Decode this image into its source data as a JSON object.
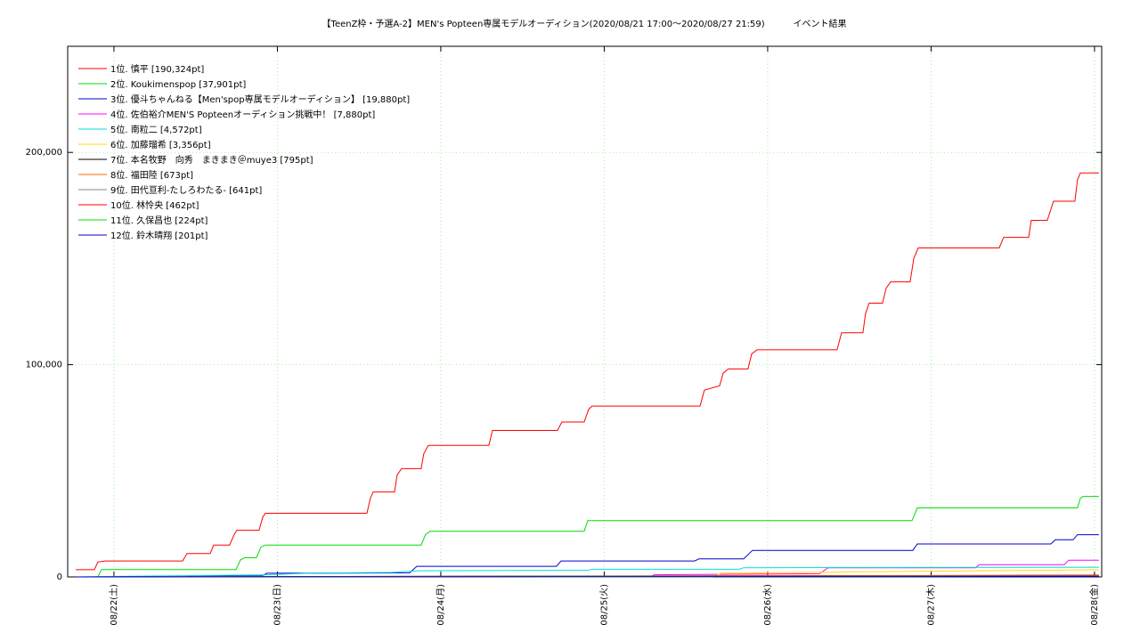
{
  "chart_data": {
    "type": "line",
    "title": "【TeenZ枠・予選A-2】MEN's Popteen専属モデルオーディション(2020/08/21 17:00～2020/08/27 21:59)          イベント結果",
    "xlim": [
      21.717,
      28.044
    ],
    "xticks": [
      {
        "value": 22,
        "label": "08/22(土)"
      },
      {
        "value": 23,
        "label": "08/23(日)"
      },
      {
        "value": 24,
        "label": "08/24(月)"
      },
      {
        "value": 25,
        "label": "08/25(火)"
      },
      {
        "value": 26,
        "label": "08/26(水)"
      },
      {
        "value": 27,
        "label": "08/27(木)"
      },
      {
        "value": 28,
        "label": "08/28(金)"
      }
    ],
    "ylim": [
      0,
      250000
    ],
    "yticks": [
      0,
      {
        "value": 100000,
        "label": "100,000"
      },
      {
        "value": 200000,
        "label": "200,000"
      }
    ],
    "grid": true,
    "legend": "upper left",
    "series": [
      {
        "name": "1位. 慎平 [190,324pt]",
        "color": "#ff0000",
        "x": [
          21.766,
          21.88,
          21.902,
          21.946,
          22.42,
          22.447,
          22.589,
          22.61,
          22.708,
          22.736,
          22.752,
          22.888,
          22.91,
          22.926,
          23.548,
          23.569,
          23.586,
          23.717,
          23.733,
          23.76,
          23.88,
          23.896,
          23.924,
          24.294,
          24.316,
          24.714,
          24.741,
          24.877,
          24.905,
          24.926,
          25.586,
          25.613,
          25.706,
          25.728,
          25.76,
          25.88,
          25.902,
          25.935,
          26.425,
          26.452,
          26.583,
          26.599,
          26.621,
          26.703,
          26.725,
          26.752,
          26.872,
          26.894,
          26.921,
          27.417,
          27.444,
          27.597,
          27.613,
          27.711,
          27.749,
          27.88,
          27.896,
          27.913,
          28.027
        ],
        "values": [
          3400,
          3400,
          7000,
          7500,
          7500,
          11000,
          11000,
          15000,
          15000,
          20000,
          22000,
          22000,
          28000,
          30000,
          30000,
          37000,
          40000,
          40000,
          48000,
          51000,
          51000,
          58000,
          62000,
          62000,
          69000,
          69000,
          73000,
          73000,
          79000,
          80500,
          80500,
          88000,
          90000,
          96000,
          98000,
          98000,
          105000,
          107000,
          107000,
          115000,
          115000,
          124000,
          129000,
          129000,
          136000,
          139000,
          139000,
          150000,
          155000,
          155000,
          160000,
          160000,
          168000,
          168000,
          177000,
          177000,
          187000,
          190324,
          190324
        ]
      },
      {
        "name": "2位. Koukimenspop [37,901pt]",
        "color": "#00dd00",
        "x": [
          21.766,
          21.902,
          21.924,
          22.747,
          22.774,
          22.801,
          22.872,
          22.899,
          22.926,
          23.88,
          23.907,
          23.935,
          24.877,
          24.899,
          26.883,
          26.916,
          27.896,
          27.913,
          27.929,
          28.027
        ],
        "values": [
          0,
          0,
          3500,
          3500,
          8000,
          9000,
          9000,
          14000,
          15000,
          15000,
          20000,
          21500,
          21500,
          26500,
          26500,
          32500,
          32500,
          37000,
          37901,
          37901
        ]
      },
      {
        "name": "3位. 優斗ちゃんねる【Men'spop専属モデルオーディション】 [19,880pt]",
        "color": "#0000cc",
        "x": [
          21.766,
          22.447,
          22.474,
          22.91,
          22.937,
          23.809,
          23.853,
          24.708,
          24.736,
          25.553,
          25.58,
          25.853,
          25.907,
          26.888,
          26.916,
          27.733,
          27.76,
          27.869,
          27.896,
          28.027
        ],
        "values": [
          0,
          0,
          500,
          700,
          1700,
          1900,
          5000,
          5000,
          7500,
          7500,
          8500,
          8500,
          12500,
          12500,
          15500,
          15500,
          17500,
          17500,
          19880,
          19880
        ]
      },
      {
        "name": "4位. 佐伯裕介MEN'S Popteenオーディション挑戦中！ [7,880pt]",
        "color": "#ff00ff",
        "x": [
          21.766,
          25.281,
          25.308,
          26.316,
          26.371,
          27.27,
          27.297,
          27.815,
          27.842,
          28.027
        ],
        "values": [
          0,
          0,
          1000,
          1500,
          4300,
          4300,
          5800,
          5800,
          7880,
          7880
        ]
      },
      {
        "name": "5位. 南粒二 [4,572pt]",
        "color": "#00dddd",
        "x": [
          21.766,
          22.937,
          23.21,
          23.7,
          23.864,
          24.899,
          24.926,
          25.826,
          25.853,
          28.027
        ],
        "values": [
          0,
          1000,
          1800,
          2100,
          2900,
          3100,
          3600,
          3600,
          4300,
          4572
        ]
      },
      {
        "name": "6位. 加藤瑠希 [3,356pt]",
        "color": "#ffdd00",
        "x": [
          21.766,
          25.662,
          25.717,
          28.027
        ],
        "values": [
          0,
          0,
          1800,
          3356
        ]
      },
      {
        "name": "7位. 本名牧野　向秀　まきまき＠muye3 [795pt]",
        "color": "#000000",
        "x": [
          21.766,
          28.027
        ],
        "values": [
          0,
          795
        ]
      },
      {
        "name": "8位. 福田陸 [673pt]",
        "color": "#ff6600",
        "x": [
          21.766,
          25.662,
          25.717,
          28.027
        ],
        "values": [
          0,
          100,
          600,
          673
        ]
      },
      {
        "name": "9位. 田代亘利‐たしろわたる‐ [641pt]",
        "color": "#888888",
        "x": [
          21.766,
          28.027
        ],
        "values": [
          0,
          641
        ]
      },
      {
        "name": "10位. 林怜央 [462pt]",
        "color": "#ff0000",
        "x": [
          21.766,
          28.027
        ],
        "values": [
          0,
          462
        ]
      },
      {
        "name": "11位. 久保昌也 [224pt]",
        "color": "#00dd00",
        "x": [
          21.766,
          28.027
        ],
        "values": [
          0,
          224
        ]
      },
      {
        "name": "12位. 鈴木晴翔 [201pt]",
        "color": "#0000cc",
        "x": [
          21.766,
          28.027
        ],
        "values": [
          0,
          201
        ]
      }
    ]
  }
}
